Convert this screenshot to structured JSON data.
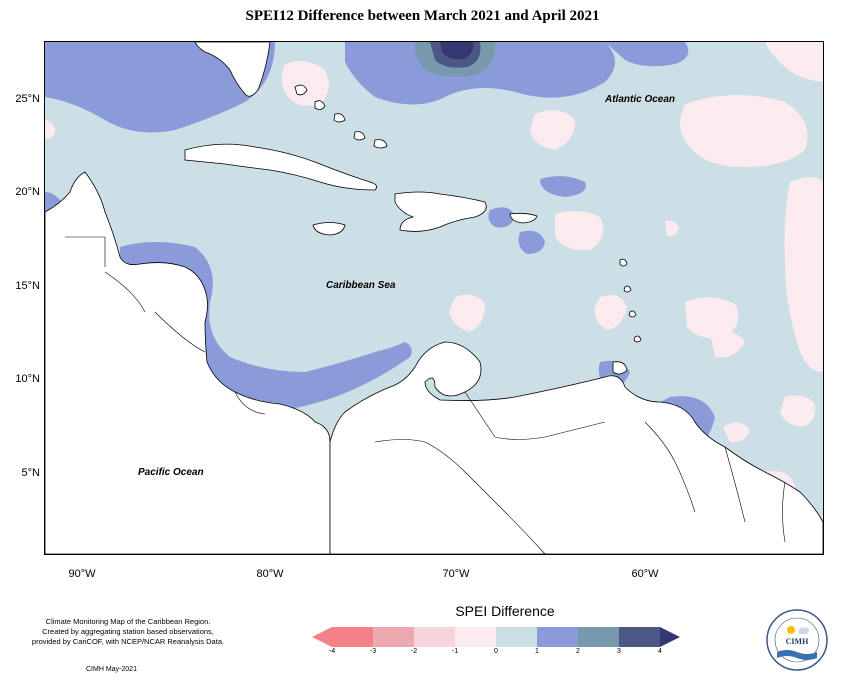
{
  "title": "SPEI12 Difference between March 2021 and April 2021",
  "map": {
    "y_axis_labels": [
      "25°N",
      "20°N",
      "15°N",
      "10°N",
      "5°N"
    ],
    "x_axis_labels": [
      "90°W",
      "80°W",
      "70°W",
      "60°W"
    ],
    "region_labels": {
      "atlantic": "Atlantic Ocean",
      "caribbean": "Caribbean Sea",
      "pacific": "Pacific Ocean"
    }
  },
  "legend": {
    "title": "SPEI Difference",
    "ticks": [
      "-4",
      "-3",
      "-2",
      "-1",
      "0",
      "1",
      "2",
      "3",
      "4"
    ],
    "colors": {
      "c_m4": "#f4808a",
      "c_m3": "#eda9b0",
      "c_m2": "#f7d4dc",
      "c_m1": "#fcebee",
      "c_0": "#ccdfe6",
      "c_1": "#8b9ad9",
      "c_2": "#7799ab",
      "c_3": "#4d5786",
      "c_4": "#333873"
    }
  },
  "credit": {
    "line1": "Climate Monitoring Map of the Caribbean Region.",
    "line2": "Created by aggregating station based observations,",
    "line3": "provided by CariCOF, with NCEP/NCAR Reanalysis Data.",
    "date": "CIMH May-2021"
  },
  "logo": {
    "text": "CIMH"
  }
}
